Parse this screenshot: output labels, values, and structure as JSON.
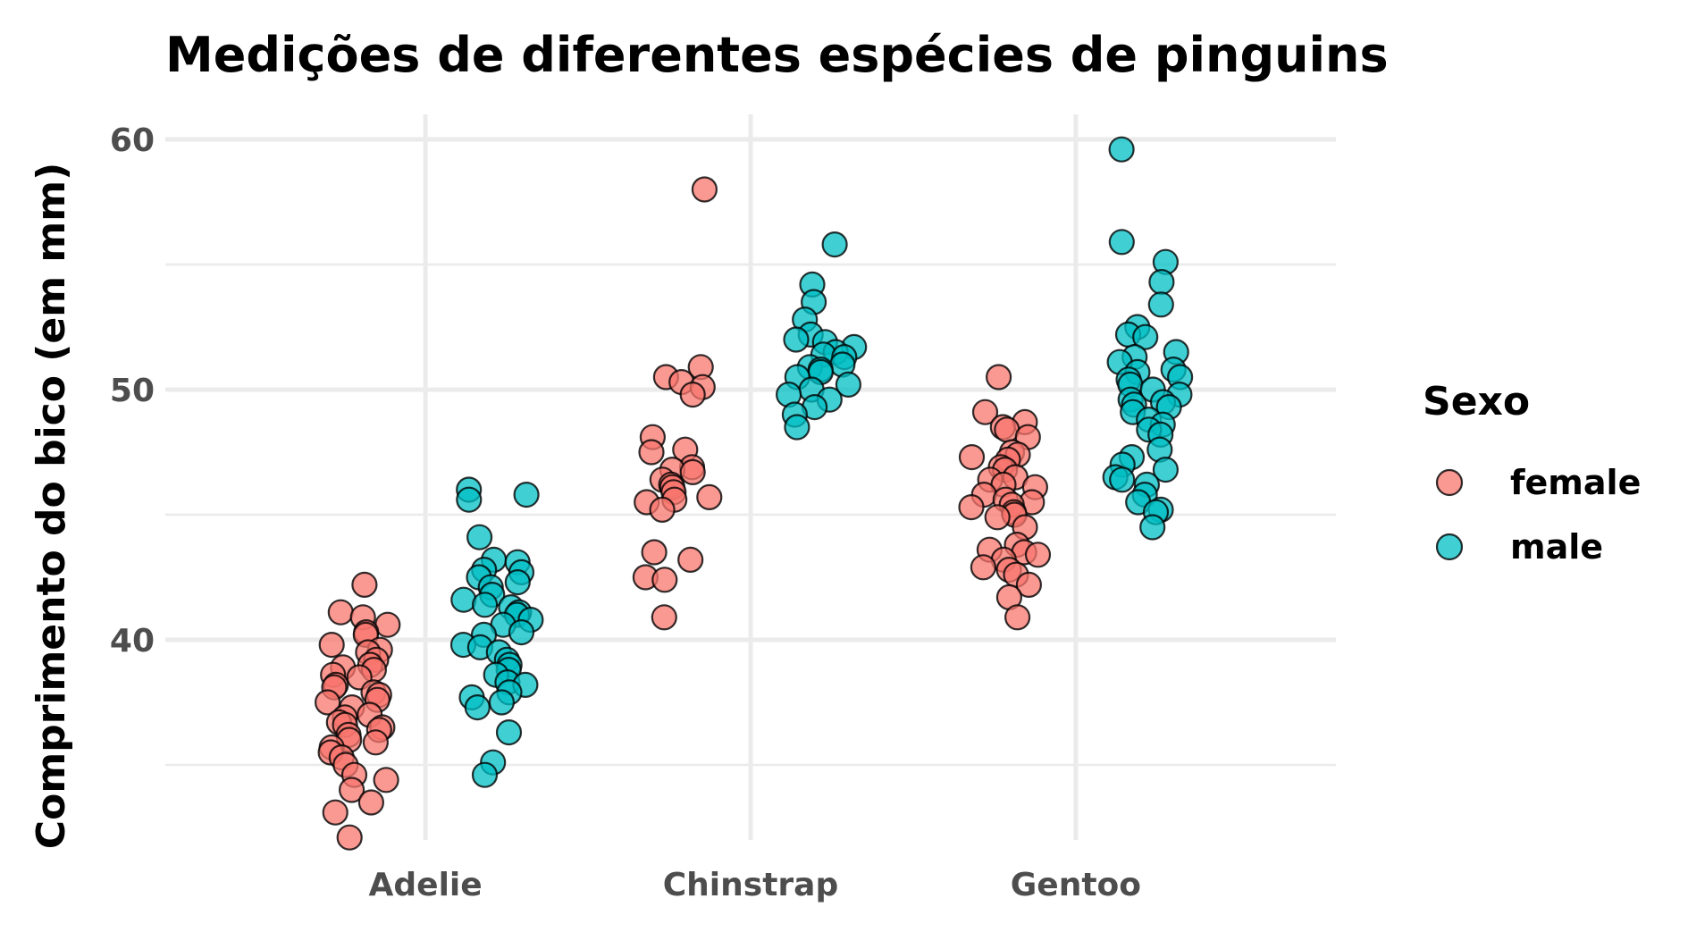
{
  "chart_data": {
    "type": "scatter",
    "title": "Medições de diferentes espécies de pinguins",
    "xlabel": "",
    "ylabel": "Comprimento do bico (em mm)",
    "categories": [
      "Adelie",
      "Chinstrap",
      "Gentoo"
    ],
    "ylim": [
      32.0,
      61.0
    ],
    "yticks": [
      40,
      50,
      60
    ],
    "grid": true,
    "legend": {
      "title": "Sexo",
      "position": "right"
    },
    "series": [
      {
        "name": "female",
        "color": "#F8766D",
        "points": [
          {
            "category": "Adelie",
            "values": [
              42.2,
              41.1,
              40.9,
              40.6,
              40.3,
              40.2,
              39.8,
              39.6,
              39.5,
              39.2,
              39.0,
              38.9,
              38.8,
              38.6,
              38.5,
              38.2,
              38.1,
              37.9,
              37.8,
              37.6,
              37.5,
              37.3,
              37.0,
              36.9,
              36.7,
              36.6,
              36.5,
              36.4,
              36.2,
              36.0,
              35.9,
              35.7,
              35.5,
              35.3,
              35.0,
              34.6,
              34.4,
              34.0,
              33.5,
              33.1,
              32.1
            ]
          },
          {
            "category": "Chinstrap",
            "values": [
              58.0,
              50.9,
              50.5,
              50.3,
              50.1,
              49.8,
              48.1,
              47.6,
              47.5,
              46.9,
              46.8,
              46.7,
              46.4,
              46.2,
              46.1,
              45.9,
              45.7,
              45.6,
              45.5,
              45.2,
              43.5,
              43.2,
              42.5,
              42.4,
              40.9
            ]
          },
          {
            "category": "Gentoo",
            "values": [
              50.5,
              49.1,
              48.7,
              48.5,
              48.4,
              48.1,
              47.5,
              47.4,
              47.3,
              47.2,
              46.9,
              46.8,
              46.5,
              46.4,
              46.2,
              46.1,
              45.8,
              45.6,
              45.5,
              45.4,
              45.3,
              45.1,
              45.0,
              44.9,
              44.5,
              43.8,
              43.6,
              43.5,
              43.4,
              43.2,
              42.9,
              42.8,
              42.6,
              42.2,
              41.7,
              40.9
            ]
          }
        ]
      },
      {
        "name": "male",
        "color": "#00BFC4",
        "points": [
          {
            "category": "Adelie",
            "values": [
              46.0,
              45.8,
              45.6,
              44.1,
              43.2,
              43.1,
              42.8,
              42.7,
              42.5,
              42.3,
              42.1,
              41.8,
              41.6,
              41.4,
              41.3,
              41.1,
              41.0,
              40.8,
              40.6,
              40.3,
              40.2,
              39.8,
              39.7,
              39.5,
              39.2,
              39.0,
              38.8,
              38.6,
              38.3,
              38.2,
              37.9,
              37.7,
              37.5,
              37.3,
              36.3,
              35.1,
              34.6
            ]
          },
          {
            "category": "Chinstrap",
            "values": [
              55.8,
              54.2,
              53.5,
              52.8,
              52.2,
              52.0,
              51.9,
              51.7,
              51.5,
              51.4,
              51.3,
              51.0,
              50.9,
              50.8,
              50.7,
              50.5,
              50.2,
              50.0,
              49.8,
              49.6,
              49.3,
              49.0,
              48.5
            ]
          },
          {
            "category": "Gentoo",
            "values": [
              59.6,
              55.9,
              55.1,
              54.3,
              53.4,
              52.5,
              52.2,
              52.1,
              51.5,
              51.3,
              51.1,
              50.8,
              50.7,
              50.5,
              50.4,
              50.2,
              50.0,
              49.8,
              49.6,
              49.5,
              49.4,
              49.3,
              49.1,
              48.8,
              48.6,
              48.4,
              48.2,
              47.6,
              47.3,
              47.0,
              46.8,
              46.5,
              46.4,
              46.2,
              45.8,
              45.5,
              45.2,
              45.1,
              44.5
            ]
          }
        ]
      }
    ]
  }
}
